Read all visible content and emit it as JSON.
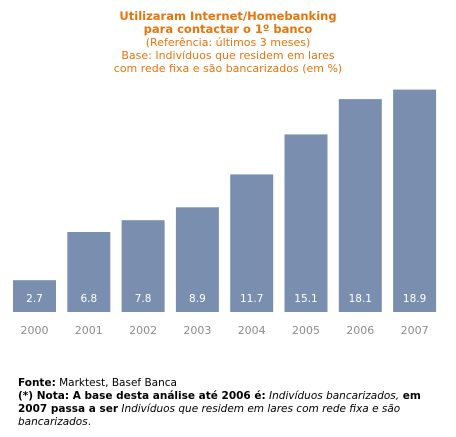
{
  "title": {
    "line1": "Utilizaram Internet/Homebanking",
    "line2": "para contactar o 1º banco",
    "line3": "(Referência: últimos 3 meses)",
    "line4": "Base: Indivíduos que residem em lares",
    "line5": "com rede fixa e são bancarizados (em %)"
  },
  "chart_data": {
    "type": "bar",
    "categories": [
      "2000",
      "2001",
      "2002",
      "2003",
      "2004",
      "2005",
      "2006",
      "2007"
    ],
    "values": [
      2.7,
      6.8,
      7.8,
      8.9,
      11.7,
      15.1,
      18.1,
      18.9
    ],
    "value_labels": [
      "2.7",
      "6.8",
      "7.8",
      "8.9",
      "11.7",
      "15.1",
      "18.1",
      "18.9"
    ],
    "ylim": [
      0,
      20.4
    ],
    "grid": false,
    "bar_color": "#7a8faf",
    "label_color": "#ffffff",
    "tick_label_color": "#8c8c8c"
  },
  "footer": {
    "source_label": "Fonte:",
    "source_text": " Marktest, Basef Banca",
    "note_label": "(*) Nota: A base desta análise até 2006 é:",
    "note_italic1": " Indivíduos bancarizados,",
    "note_mid": " em 2007 passa a ser",
    "note_italic2": " Indivíduos que residem em lares com rede fixa e são bancarizados",
    "note_end": "."
  }
}
